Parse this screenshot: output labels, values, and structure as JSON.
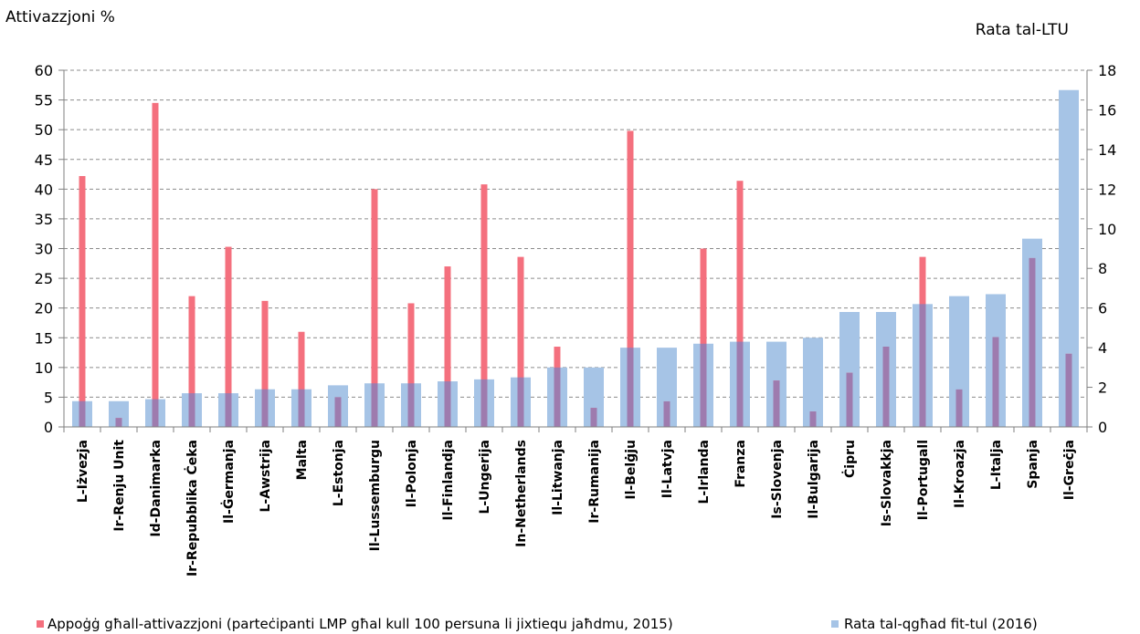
{
  "chart_data": {
    "type": "bar",
    "y_left_label": "Attivazzjoni %",
    "y_right_label": "Rata tal-LTU",
    "ylim_left": [
      0,
      60
    ],
    "ylim_right": [
      0,
      18
    ],
    "yticks_left": [
      "0",
      "5",
      "10",
      "15",
      "20",
      "25",
      "30",
      "35",
      "40",
      "45",
      "50",
      "55",
      "60"
    ],
    "yticks_right": [
      "0",
      "2",
      "4",
      "6",
      "8",
      "10",
      "12",
      "14",
      "16",
      "18"
    ],
    "grid": true,
    "legend_position": "bottom",
    "categories": [
      "L-Iżvezja",
      "Ir-Renju Unit",
      "Id-Danimarka",
      "Ir-Repubblika Ċeka",
      "Il-Ġermanja",
      "L-Awstrija",
      "Malta",
      "L-Estonja",
      "Il-Lussemburgu",
      "Il-Polonja",
      "Il-Finlandja",
      "L-Ungerija",
      "In-Netherlands",
      "Il-Litwanja",
      "Ir-Rumanija",
      "Il-Belġju",
      "Il-Latvja",
      "L-Irlanda",
      "Franza",
      "Is-Slovenja",
      "Il-Bulgarija",
      "Ċipru",
      "Is-Slovakkja",
      "Il-Portugall",
      "Il-Kroazja",
      "L-Italja",
      "Spanja",
      "Il-Greċja"
    ],
    "series": [
      {
        "name": "Rata tal-qgħad fit-tul (2016)",
        "axis": "right",
        "color": "#a6c4e6",
        "values": [
          1.3,
          1.3,
          1.4,
          1.7,
          1.7,
          1.9,
          1.9,
          2.1,
          2.2,
          2.2,
          2.3,
          2.4,
          2.5,
          3.0,
          3.0,
          4.0,
          4.0,
          4.2,
          4.3,
          4.3,
          4.5,
          5.8,
          5.8,
          6.2,
          6.6,
          6.7,
          9.5,
          17.0
        ]
      },
      {
        "name": "Appoġġ għall-attivazzjoni (parteċipanti LMP għal kull 100 persuna li jixtiequ jaħdmu, 2015)",
        "axis": "left",
        "color": "#f4707e",
        "values": [
          42.2,
          1.5,
          54.5,
          22.0,
          30.3,
          21.2,
          16.0,
          5.0,
          40.0,
          20.8,
          27.0,
          40.8,
          28.6,
          13.5,
          3.2,
          49.8,
          4.3,
          30.0,
          41.4,
          7.8,
          2.6,
          9.1,
          13.5,
          28.6,
          6.3,
          15.1,
          28.4,
          12.3
        ]
      }
    ]
  }
}
